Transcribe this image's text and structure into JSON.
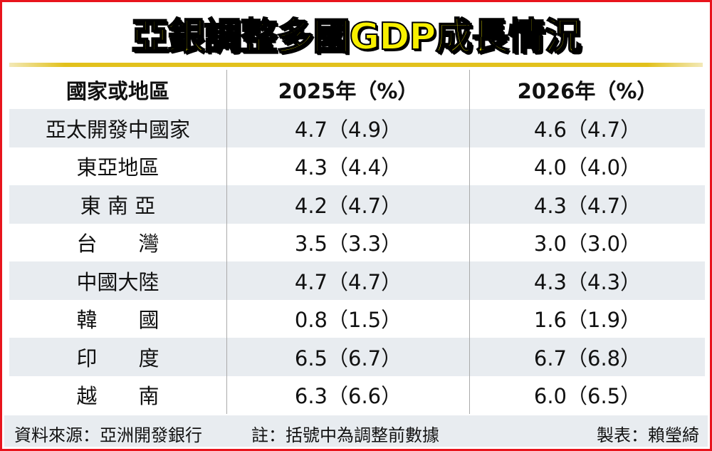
{
  "title": "亞銀調整多國GDP成長情況",
  "colors": {
    "border": "#e8141c",
    "title_fill": "#f8f000",
    "accent_bar": "#e2c11c",
    "row_alt": "#e8ecf0"
  },
  "chart_data": {
    "type": "table",
    "title": "亞銀調整多國GDP成長情況",
    "columns": [
      "國家或地區",
      "2025年（%）",
      "2026年（%）"
    ],
    "rows": [
      {
        "name": "亞太開發中國家",
        "y2025": "4.7（4.9）",
        "y2026": "4.6（4.7）"
      },
      {
        "name": "東亞地區",
        "y2025": "4.3（4.4）",
        "y2026": "4.0（4.0）"
      },
      {
        "name": "東 南 亞",
        "y2025": "4.2（4.7）",
        "y2026": "4.3（4.7）"
      },
      {
        "name": "台　　灣",
        "y2025": "3.5（3.3）",
        "y2026": "3.0（3.0）"
      },
      {
        "name": "中國大陸",
        "y2025": "4.7（4.7）",
        "y2026": "4.3（4.3）"
      },
      {
        "name": "韓　　國",
        "y2025": "0.8（1.5）",
        "y2026": "1.6（1.9）"
      },
      {
        "name": "印　　度",
        "y2025": "6.5（6.7）",
        "y2026": "6.7（6.8）"
      },
      {
        "name": "越　　南",
        "y2025": "6.3（6.6）",
        "y2026": "6.0（6.5）"
      }
    ]
  },
  "footer": {
    "source": "資料來源：亞洲開發銀行",
    "note": "註：括號中為調整前數據",
    "credit": "製表：賴瑩綺"
  }
}
